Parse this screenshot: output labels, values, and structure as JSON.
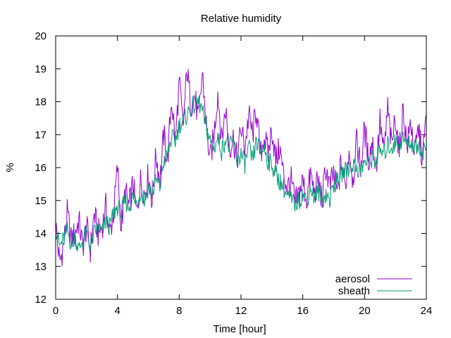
{
  "chart_data": {
    "type": "line",
    "title": "Relative humidity",
    "xlabel": "Time [hour]",
    "ylabel": "%",
    "xlim": [
      0,
      24
    ],
    "ylim": [
      12,
      20
    ],
    "xticks": [
      0,
      4,
      8,
      12,
      16,
      20,
      24
    ],
    "yticks": [
      12,
      13,
      14,
      15,
      16,
      17,
      18,
      19,
      20
    ],
    "grid": false,
    "legend_position": "bottom-right",
    "series": [
      {
        "name": "aerosol",
        "color": "#9400d3",
        "x": [
          0,
          0.25,
          0.5,
          0.75,
          1,
          1.25,
          1.5,
          1.75,
          2,
          2.25,
          2.5,
          2.75,
          3,
          3.25,
          3.5,
          3.75,
          4,
          4.25,
          4.5,
          4.75,
          5,
          5.25,
          5.5,
          5.75,
          6,
          6.25,
          6.5,
          6.75,
          7,
          7.25,
          7.5,
          7.75,
          8,
          8.25,
          8.5,
          8.75,
          9,
          9.25,
          9.5,
          9.75,
          10,
          10.25,
          10.5,
          10.75,
          11,
          11.25,
          11.5,
          11.75,
          12,
          12.25,
          12.5,
          12.75,
          13,
          13.25,
          13.5,
          13.75,
          14,
          14.25,
          14.5,
          14.75,
          15,
          15.25,
          15.5,
          15.75,
          16,
          16.25,
          16.5,
          16.75,
          17,
          17.25,
          17.5,
          17.75,
          18,
          18.25,
          18.5,
          18.75,
          19,
          19.25,
          19.5,
          19.75,
          20,
          20.25,
          20.5,
          20.75,
          21,
          21.25,
          21.5,
          21.75,
          22,
          22.25,
          22.5,
          22.75,
          23,
          23.25,
          23.5,
          23.75,
          24
        ],
        "y": [
          14.3,
          13.1,
          13.6,
          14.6,
          13.8,
          14.0,
          14.4,
          13.6,
          14.2,
          13.5,
          14.6,
          14.0,
          14.2,
          14.8,
          14.0,
          14.6,
          16.0,
          14.2,
          15.3,
          14.8,
          15.5,
          14.6,
          15.6,
          15.2,
          15.8,
          15.0,
          16.4,
          15.6,
          17.0,
          16.2,
          18.1,
          16.8,
          18.6,
          17.2,
          19.0,
          17.9,
          18.2,
          17.4,
          18.9,
          17.3,
          16.2,
          17.0,
          18.3,
          16.8,
          17.8,
          16.6,
          16.9,
          16.2,
          17.2,
          16.6,
          17.6,
          17.0,
          17.8,
          16.3,
          17.0,
          16.4,
          17.2,
          16.2,
          16.6,
          15.8,
          15.4,
          15.6,
          14.9,
          15.2,
          15.6,
          15.0,
          15.8,
          15.2,
          15.6,
          15.0,
          16.0,
          15.4,
          15.8,
          15.2,
          16.2,
          15.4,
          16.6,
          15.6,
          16.8,
          16.0,
          17.2,
          16.2,
          16.8,
          16.0,
          17.4,
          16.4,
          17.8,
          16.6,
          17.6,
          16.4,
          17.8,
          16.6,
          17.4,
          16.4,
          17.2,
          16.2,
          17.6
        ],
        "wiggle": 0.45
      },
      {
        "name": "sheath",
        "color": "#009e73",
        "x": [
          0,
          0.25,
          0.5,
          0.75,
          1,
          1.25,
          1.5,
          1.75,
          2,
          2.25,
          2.5,
          2.75,
          3,
          3.25,
          3.5,
          3.75,
          4,
          4.25,
          4.5,
          4.75,
          5,
          5.25,
          5.5,
          5.75,
          6,
          6.25,
          6.5,
          6.75,
          7,
          7.25,
          7.5,
          7.75,
          8,
          8.25,
          8.5,
          8.75,
          9,
          9.25,
          9.5,
          9.75,
          10,
          10.25,
          10.5,
          10.75,
          11,
          11.25,
          11.5,
          11.75,
          12,
          12.25,
          12.5,
          12.75,
          13,
          13.25,
          13.5,
          13.75,
          14,
          14.25,
          14.5,
          14.75,
          15,
          15.25,
          15.5,
          15.75,
          16,
          16.25,
          16.5,
          16.75,
          17,
          17.25,
          17.5,
          17.75,
          18,
          18.25,
          18.5,
          18.75,
          19,
          19.25,
          19.5,
          19.75,
          20,
          20.25,
          20.5,
          20.75,
          21,
          21.25,
          21.5,
          21.75,
          22,
          22.25,
          22.5,
          22.75,
          23,
          23.25,
          23.5,
          23.75,
          24
        ],
        "y": [
          14.2,
          13.6,
          13.8,
          14.1,
          13.7,
          13.9,
          13.5,
          13.8,
          14.0,
          13.6,
          14.0,
          14.2,
          14.0,
          14.4,
          14.2,
          14.6,
          14.8,
          14.6,
          15.0,
          14.8,
          15.1,
          14.9,
          15.3,
          15.0,
          15.4,
          15.2,
          15.6,
          15.4,
          16.2,
          16.4,
          16.9,
          16.8,
          17.3,
          17.4,
          17.6,
          17.8,
          17.9,
          18.0,
          17.7,
          17.2,
          16.8,
          16.6,
          16.9,
          16.5,
          16.9,
          16.6,
          16.8,
          16.2,
          16.4,
          16.1,
          16.6,
          16.2,
          16.8,
          16.5,
          16.6,
          16.2,
          16.1,
          15.8,
          15.6,
          15.4,
          15.1,
          15.0,
          14.9,
          15.0,
          15.2,
          15.0,
          15.4,
          15.1,
          15.3,
          15.0,
          15.2,
          15.0,
          15.5,
          15.6,
          15.8,
          15.9,
          16.0,
          16.1,
          16.0,
          15.9,
          16.2,
          16.1,
          16.3,
          16.2,
          16.5,
          16.4,
          16.7,
          16.6,
          16.8,
          16.7,
          16.9,
          16.7,
          16.8,
          16.6,
          16.7,
          16.5,
          16.6
        ],
        "wiggle": 0.3
      }
    ]
  }
}
